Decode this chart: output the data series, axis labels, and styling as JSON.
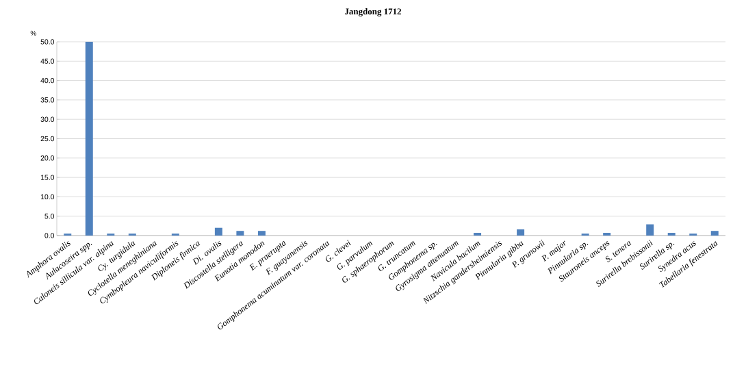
{
  "chart_data": {
    "type": "bar",
    "title": "Jangdong  1712",
    "ylabel": "%",
    "categories": [
      "Amphora ovalis",
      "Aulacoseira spp.",
      "Caloneis sillicula var. alpina",
      "Cy. turgidula",
      "Cyclotella meneghiniana",
      "Cymbopleura naviculiformis",
      "Diploneis finnica",
      "Di. ovalis",
      "Discostella stelligera",
      "Eunotia monodon",
      "E. praerupta",
      "F. guayanensis",
      "Gomphonema acuminatum var. coronata",
      "G. clevei",
      "G. parvulum",
      "G. sphaerophorum",
      "G. truncatum",
      "Gomphonema sp.",
      "Gyrosigma attenuatum",
      "Navicula bacilum",
      "Nitzschia gandersheimiensis",
      "Pinnularia gibba",
      "P. grunowii",
      "P. major",
      "Pinnularia sp.",
      "Stauroneis anceps",
      "S. tenera",
      "Surirella brebissonii",
      "Surirella sp.",
      "Synedra acus",
      "Tabellaria fenestrata"
    ],
    "values": [
      0.5,
      50,
      0.5,
      0.5,
      0,
      0.5,
      0,
      2.0,
      1.2,
      1.2,
      0,
      0,
      0,
      0,
      0,
      0,
      0,
      0,
      0,
      0.7,
      0,
      1.6,
      0,
      0,
      0.5,
      0.7,
      0,
      2.9,
      0.7,
      0.5,
      1.2
    ],
    "color": "#4f81bd",
    "ylim": [
      0,
      50
    ],
    "yticks": [
      {
        "value": 0,
        "label": "0.0"
      },
      {
        "value": 5,
        "label": "5.0"
      },
      {
        "value": 10,
        "label": "10.0"
      },
      {
        "value": 15,
        "label": "15.0"
      },
      {
        "value": 20,
        "label": "20.0"
      },
      {
        "value": 25,
        "label": "25.0"
      },
      {
        "value": 30,
        "label": "30.0"
      },
      {
        "value": 35,
        "label": "35.0"
      },
      {
        "value": 40,
        "label": "40.0"
      },
      {
        "value": 45,
        "label": "45.0"
      },
      {
        "value": 50,
        "label": "50.0"
      }
    ],
    "grid": "y"
  }
}
